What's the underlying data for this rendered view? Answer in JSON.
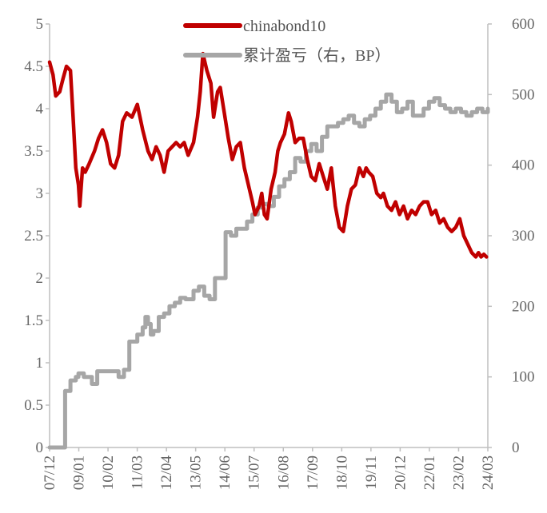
{
  "chart_data": {
    "type": "line",
    "title": "",
    "legend": {
      "placement": "top-center"
    },
    "grid": false,
    "x_ticks": [
      "07/12",
      "09/01",
      "10/02",
      "11/03",
      "12/04",
      "13/05",
      "14/06",
      "15/07",
      "16/08",
      "17/09",
      "18/10",
      "19/11",
      "20/12",
      "22/01",
      "23/02",
      "24/03"
    ],
    "y_left": {
      "range": [
        0,
        5
      ],
      "ticks": [
        "0",
        "0.5",
        "1",
        "1.5",
        "2",
        "2.5",
        "3",
        "3.5",
        "4",
        "4.5",
        "5"
      ]
    },
    "y_right": {
      "range": [
        0,
        600
      ],
      "ticks": [
        "0",
        "100",
        "200",
        "300",
        "400",
        "500",
        "600"
      ]
    },
    "series": [
      {
        "name": "chinabond10",
        "axis": "left",
        "color": "#c00000",
        "x": [
          2007.92,
          2008.05,
          2008.15,
          2008.3,
          2008.42,
          2008.55,
          2008.7,
          2008.8,
          2008.9,
          2009.0,
          2009.05,
          2009.15,
          2009.25,
          2009.4,
          2009.6,
          2009.75,
          2009.9,
          2010.05,
          2010.2,
          2010.35,
          2010.5,
          2010.65,
          2010.8,
          2011.0,
          2011.2,
          2011.4,
          2011.6,
          2011.75,
          2011.9,
          2012.05,
          2012.2,
          2012.35,
          2012.5,
          2012.65,
          2012.8,
          2012.95,
          2013.1,
          2013.3,
          2013.45,
          2013.55,
          2013.65,
          2013.8,
          2013.95,
          2014.05,
          2014.2,
          2014.3,
          2014.45,
          2014.6,
          2014.75,
          2014.9,
          2015.05,
          2015.2,
          2015.35,
          2015.5,
          2015.6,
          2015.75,
          2015.85,
          2015.95,
          2016.05,
          2016.2,
          2016.35,
          2016.45,
          2016.55,
          2016.7,
          2016.85,
          2016.95,
          2017.1,
          2017.25,
          2017.4,
          2017.55,
          2017.7,
          2017.85,
          2018.0,
          2018.15,
          2018.3,
          2018.45,
          2018.6,
          2018.75,
          2018.9,
          2019.05,
          2019.2,
          2019.35,
          2019.5,
          2019.65,
          2019.75,
          2019.85,
          2020.0,
          2020.15,
          2020.3,
          2020.4,
          2020.55,
          2020.7,
          2020.85,
          2021.0,
          2021.15,
          2021.3,
          2021.45,
          2021.6,
          2021.75,
          2021.9,
          2022.05,
          2022.2,
          2022.35,
          2022.5,
          2022.65,
          2022.8,
          2022.95,
          2023.1,
          2023.25,
          2023.4,
          2023.55,
          2023.7,
          2023.85,
          2023.95,
          2024.05,
          2024.15,
          2024.25
        ],
        "values": [
          4.55,
          4.4,
          4.15,
          4.2,
          4.35,
          4.5,
          4.45,
          3.9,
          3.3,
          3.1,
          2.85,
          3.3,
          3.25,
          3.35,
          3.5,
          3.65,
          3.75,
          3.6,
          3.35,
          3.3,
          3.45,
          3.85,
          3.95,
          3.9,
          4.05,
          3.75,
          3.5,
          3.4,
          3.55,
          3.45,
          3.25,
          3.5,
          3.55,
          3.6,
          3.55,
          3.6,
          3.45,
          3.6,
          3.9,
          4.2,
          4.65,
          4.45,
          4.3,
          3.9,
          4.2,
          4.25,
          3.95,
          3.65,
          3.4,
          3.55,
          3.6,
          3.3,
          3.1,
          2.9,
          2.75,
          2.85,
          3.0,
          2.75,
          2.7,
          3.05,
          3.25,
          3.5,
          3.6,
          3.7,
          3.95,
          3.85,
          3.6,
          3.65,
          3.65,
          3.4,
          3.2,
          3.15,
          3.35,
          3.2,
          3.05,
          3.3,
          2.85,
          2.6,
          2.55,
          2.85,
          3.05,
          3.1,
          3.3,
          3.2,
          3.3,
          3.25,
          3.2,
          3.0,
          2.95,
          3.0,
          2.85,
          2.8,
          2.9,
          2.75,
          2.85,
          2.7,
          2.8,
          2.75,
          2.85,
          2.9,
          2.9,
          2.75,
          2.8,
          2.65,
          2.7,
          2.6,
          2.55,
          2.6,
          2.7,
          2.5,
          2.4,
          2.3,
          2.25,
          2.3,
          2.25,
          2.28,
          2.25
        ]
      },
      {
        "name": "累计盈亏（右，BP）",
        "axis": "right",
        "color": "#a6a6a6",
        "x": [
          2007.92,
          2008.4,
          2008.5,
          2008.7,
          2008.9,
          2009.0,
          2009.2,
          2009.5,
          2009.7,
          2010.0,
          2010.2,
          2010.5,
          2010.7,
          2010.9,
          2011.0,
          2011.2,
          2011.4,
          2011.5,
          2011.6,
          2011.7,
          2011.8,
          2012.0,
          2012.2,
          2012.4,
          2012.6,
          2012.8,
          2013.0,
          2013.2,
          2013.3,
          2013.5,
          2013.7,
          2013.9,
          2014.1,
          2014.3,
          2014.5,
          2014.7,
          2014.9,
          2015.1,
          2015.3,
          2015.5,
          2015.7,
          2015.9,
          2016.1,
          2016.3,
          2016.5,
          2016.7,
          2016.9,
          2017.1,
          2017.3,
          2017.5,
          2017.7,
          2017.9,
          2018.1,
          2018.3,
          2018.5,
          2018.7,
          2018.9,
          2019.1,
          2019.3,
          2019.5,
          2019.7,
          2019.9,
          2020.1,
          2020.3,
          2020.5,
          2020.7,
          2020.9,
          2021.1,
          2021.3,
          2021.5,
          2021.7,
          2021.9,
          2022.1,
          2022.3,
          2022.5,
          2022.7,
          2022.9,
          2023.1,
          2023.3,
          2023.5,
          2023.7,
          2023.9,
          2024.1,
          2024.3
        ],
        "values": [
          0,
          0,
          80,
          95,
          100,
          105,
          100,
          90,
          108,
          108,
          108,
          100,
          110,
          150,
          150,
          160,
          170,
          185,
          175,
          160,
          165,
          185,
          190,
          200,
          205,
          212,
          210,
          210,
          222,
          228,
          215,
          210,
          240,
          240,
          305,
          300,
          310,
          310,
          320,
          330,
          340,
          345,
          342,
          355,
          370,
          380,
          390,
          410,
          405,
          420,
          430,
          420,
          440,
          455,
          455,
          460,
          465,
          470,
          460,
          455,
          465,
          470,
          480,
          490,
          500,
          490,
          475,
          480,
          490,
          470,
          470,
          480,
          490,
          495,
          485,
          480,
          475,
          480,
          475,
          470,
          475,
          480,
          475,
          480
        ]
      }
    ]
  }
}
